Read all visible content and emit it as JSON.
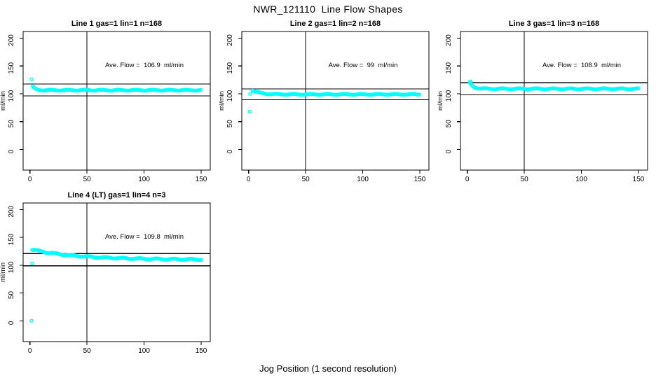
{
  "page": {
    "main_title": "NWR_121110  Line Flow Shapes",
    "x_axis_caption": "Jog Position (1 second resolution)"
  },
  "colors": {
    "points": "#00FFFF",
    "axis": "#000000",
    "background": "#FFFFFF",
    "text": "#000000"
  },
  "axes": {
    "ylabel": "ml/min",
    "x_ticks": [
      0,
      50,
      100,
      150
    ],
    "y_ticks": [
      0,
      50,
      100,
      150,
      200
    ],
    "xlim": [
      -6,
      158
    ],
    "ylim": [
      -37,
      212
    ],
    "grid": false
  },
  "chart_data": [
    {
      "type": "scatter",
      "title": "Line 1 gas=1 lin=1 n=168",
      "annotation": "Ave. Flow =  106.9  ml/min",
      "ave_flow_ml_min": 106.9,
      "vline_x": 50,
      "hlines": [
        117.6,
        96.2
      ],
      "series": {
        "x_start": 2.5,
        "x_end": 150,
        "x_step": 1,
        "y_start": 113,
        "y_flat": 106.5,
        "decay_tau": 2.2,
        "jitter": 0.8
      },
      "extra_points": [
        [
          1.5,
          126
        ]
      ],
      "annotation_center_xy": [
        100,
        150
      ]
    },
    {
      "type": "scatter",
      "title": "Line 2 gas=1 lin=2 n=168",
      "annotation": "Ave. Flow =  99  ml/min",
      "ave_flow_ml_min": 99,
      "vline_x": 50,
      "hlines": [
        108.9,
        89.1
      ],
      "series": {
        "x_start": 3.5,
        "x_end": 150,
        "x_step": 1,
        "y_start": 106.5,
        "y_flat": 99,
        "decay_tau": 6.5,
        "jitter": 0.8
      },
      "extra_points": [
        [
          1,
          68
        ],
        [
          1.5,
          100
        ]
      ],
      "annotation_center_xy": [
        100,
        150
      ]
    },
    {
      "type": "scatter",
      "title": "Line 3 gas=1 lin=3 n=168",
      "annotation": "Ave. Flow =  108.9  ml/min",
      "ave_flow_ml_min": 108.9,
      "vline_x": 50,
      "hlines": [
        119.8,
        98.0
      ],
      "series": {
        "x_start": 2,
        "x_end": 150,
        "x_step": 1,
        "y_start": 120,
        "y_flat": 109,
        "decay_tau": 3.5,
        "jitter": 0.8
      },
      "extra_points": [
        [
          3,
          122
        ]
      ],
      "annotation_center_xy": [
        100,
        150
      ]
    },
    {
      "type": "scatter",
      "title": "Line 4 (LT) gas=1 lin=4 n=3",
      "annotation": "Ave. Flow =  109.8  ml/min",
      "ave_flow_ml_min": 109.8,
      "vline_x": 50,
      "hlines": [
        120.8,
        98.8
      ],
      "series": {
        "x_start": 2,
        "x_end": 150,
        "x_step": 1,
        "y_start": 128,
        "y_flat": 109.9,
        "decay_tau": 40,
        "jitter": 1.0
      },
      "extra_points": [
        [
          1.5,
          0
        ],
        [
          2,
          103
        ]
      ],
      "annotation_center_xy": [
        100,
        150
      ]
    }
  ]
}
